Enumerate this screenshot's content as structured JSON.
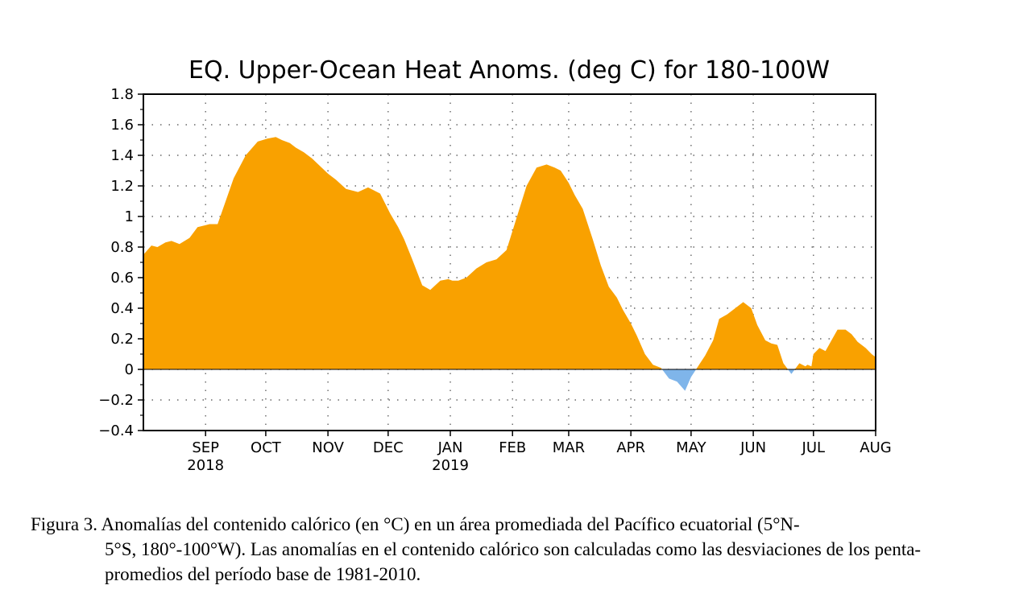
{
  "chart_data": {
    "type": "area",
    "title": "EQ. Upper-Ocean Heat Anoms. (deg C) for 180-100W",
    "xlabel": "",
    "ylabel": "",
    "ylim": [
      -0.4,
      1.8
    ],
    "yticks": [
      1.8,
      1.6,
      1.4,
      1.2,
      1,
      0.8,
      0.6,
      0.4,
      0.2,
      0,
      -0.2,
      -0.4
    ],
    "ytick_labels": [
      "1.8",
      "1.6",
      "1.4",
      "1.2",
      "1",
      "0.8",
      "0.6",
      "0.4",
      "0.2",
      "0",
      "−0.2",
      "−0.4"
    ],
    "xlim": [
      "2018-08-01",
      "2019-08-01"
    ],
    "xticks": [
      {
        "date": "2018-09-01",
        "label": "SEP",
        "year": "2018"
      },
      {
        "date": "2018-10-01",
        "label": "OCT",
        "year": ""
      },
      {
        "date": "2018-11-01",
        "label": "NOV",
        "year": ""
      },
      {
        "date": "2018-12-01",
        "label": "DEC",
        "year": ""
      },
      {
        "date": "2019-01-01",
        "label": "JAN",
        "year": "2019"
      },
      {
        "date": "2019-02-01",
        "label": "FEB",
        "year": ""
      },
      {
        "date": "2019-03-01",
        "label": "MAR",
        "year": ""
      },
      {
        "date": "2019-04-01",
        "label": "APR",
        "year": ""
      },
      {
        "date": "2019-05-01",
        "label": "MAY",
        "year": ""
      },
      {
        "date": "2019-06-01",
        "label": "JUN",
        "year": ""
      },
      {
        "date": "2019-07-01",
        "label": "JUL",
        "year": ""
      },
      {
        "date": "2019-08-01",
        "label": "AUG",
        "year": ""
      }
    ],
    "grid": true,
    "positive_color": "#f9a100",
    "negative_color": "#7fb5ea",
    "series": [
      {
        "x": [
          "2018-08-01",
          "2018-08-05",
          "2018-08-08",
          "2018-08-12",
          "2018-08-15",
          "2018-08-19",
          "2018-08-24",
          "2018-08-28",
          "2018-09-03",
          "2018-09-07",
          "2018-09-11",
          "2018-09-15",
          "2018-09-21",
          "2018-09-27",
          "2018-10-02",
          "2018-10-06",
          "2018-10-09",
          "2018-10-13",
          "2018-10-16",
          "2018-10-20",
          "2018-10-24",
          "2018-10-28",
          "2018-11-01",
          "2018-11-05",
          "2018-11-10",
          "2018-11-16",
          "2018-11-21",
          "2018-11-27",
          "2018-12-02",
          "2018-12-06",
          "2018-12-09",
          "2018-12-13",
          "2018-12-18",
          "2018-12-22",
          "2018-12-27",
          "2018-12-31",
          "2019-01-02",
          "2019-01-05",
          "2019-01-09",
          "2019-01-14",
          "2019-01-19",
          "2019-01-24",
          "2019-01-29",
          "2019-02-03",
          "2019-02-08",
          "2019-02-13",
          "2019-02-18",
          "2019-02-22",
          "2019-02-25",
          "2019-03-01",
          "2019-03-04",
          "2019-03-08",
          "2019-03-13",
          "2019-03-17",
          "2019-03-21",
          "2019-03-25",
          "2019-03-28",
          "2019-04-01",
          "2019-04-04",
          "2019-04-08",
          "2019-04-12",
          "2019-04-16",
          "2019-04-20",
          "2019-04-24",
          "2019-04-28",
          "2019-05-01",
          "2019-05-05",
          "2019-05-08",
          "2019-05-12",
          "2019-05-15",
          "2019-05-19",
          "2019-05-23",
          "2019-05-27",
          "2019-05-31",
          "2019-06-03",
          "2019-06-07",
          "2019-06-10",
          "2019-06-13",
          "2019-06-16",
          "2019-06-20",
          "2019-06-24",
          "2019-06-27",
          "2019-06-28",
          "2019-06-30",
          "2019-07-01",
          "2019-07-04",
          "2019-07-07",
          "2019-07-10",
          "2019-07-13",
          "2019-07-17",
          "2019-07-20",
          "2019-07-23",
          "2019-07-27",
          "2019-07-30",
          "2019-08-01"
        ],
        "values": [
          0.75,
          0.81,
          0.8,
          0.83,
          0.84,
          0.82,
          0.86,
          0.93,
          0.95,
          0.95,
          1.1,
          1.25,
          1.4,
          1.49,
          1.51,
          1.52,
          1.5,
          1.48,
          1.45,
          1.42,
          1.38,
          1.33,
          1.28,
          1.24,
          1.18,
          1.16,
          1.19,
          1.15,
          1.02,
          0.93,
          0.85,
          0.72,
          0.55,
          0.52,
          0.58,
          0.59,
          0.58,
          0.58,
          0.6,
          0.66,
          0.7,
          0.72,
          0.78,
          0.99,
          1.2,
          1.32,
          1.34,
          1.32,
          1.3,
          1.22,
          1.14,
          1.05,
          0.85,
          0.68,
          0.54,
          0.47,
          0.39,
          0.3,
          0.22,
          0.1,
          0.03,
          0.01,
          -0.06,
          -0.08,
          -0.14,
          -0.05,
          0.03,
          0.09,
          0.19,
          0.33,
          0.36,
          0.4,
          0.44,
          0.4,
          0.29,
          0.19,
          0.17,
          0.16,
          0.04,
          -0.03,
          0.04,
          0.02,
          0.03,
          0.02,
          0.1,
          0.14,
          0.12,
          0.19,
          0.26,
          0.26,
          0.23,
          0.18,
          0.14,
          0.1,
          0.08
        ]
      }
    ]
  },
  "caption": {
    "line1": "Figura 3. Anomalías del contenido calórico (en °C) en un área promediada del Pacífico ecuatorial (5°N-",
    "rest": "5°S, 180°-100°W). Las anomalías en el contenido calórico son calculadas como las desviaciones de los penta-promedios del período base de 1981-2010."
  }
}
